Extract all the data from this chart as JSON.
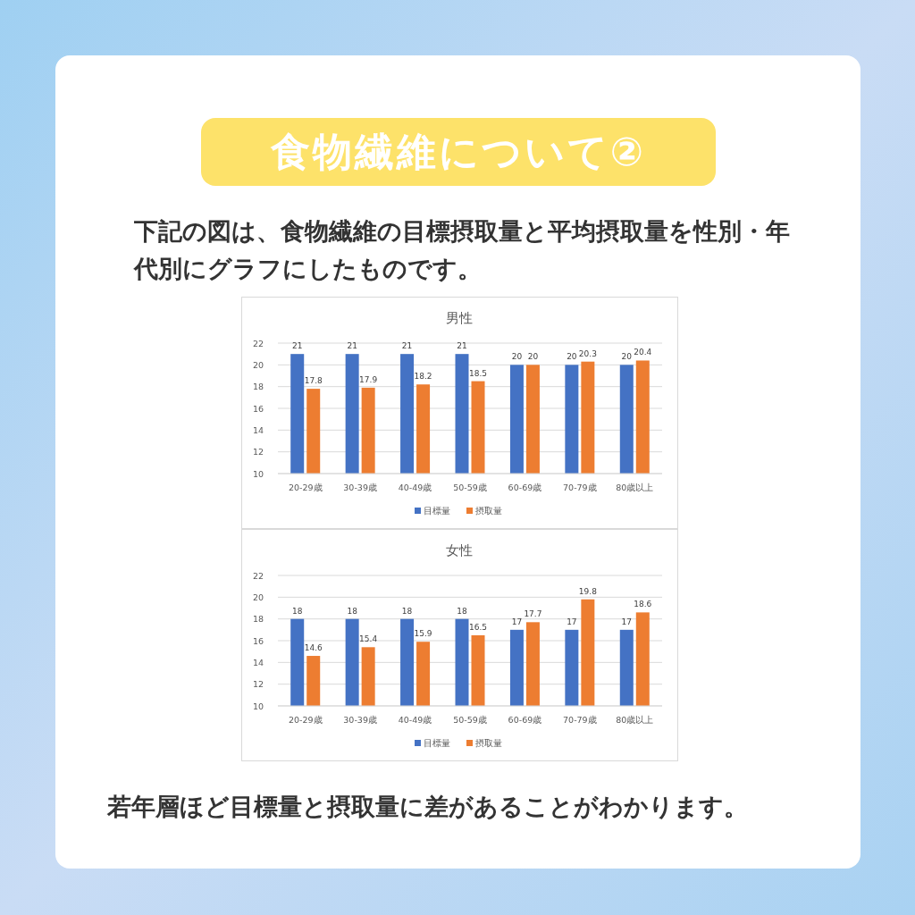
{
  "chart_data": [
    {
      "type": "bar",
      "title": "男性",
      "categories": [
        "20-29歳",
        "30-39歳",
        "40-49歳",
        "50-59歳",
        "60-69歳",
        "70-79歳",
        "80歳以上"
      ],
      "series": [
        {
          "name": "目標量",
          "color": "#4472c4",
          "values": [
            21,
            21,
            21,
            21,
            20,
            20,
            20
          ]
        },
        {
          "name": "摂取量",
          "color": "#ed7d31",
          "values": [
            17.8,
            17.9,
            18.2,
            18.5,
            20,
            20.3,
            20.4
          ]
        }
      ],
      "ylim": [
        10,
        22
      ],
      "yticks": [
        10,
        12,
        14,
        16,
        18,
        20,
        22
      ],
      "grid": "y",
      "legend": "bottom",
      "data_labels": true,
      "annotations": [
        "食物繊維について②",
        "下記の図は、食物繊維の目標摂取量と平均摂取量を性別・年代別にグラフにしたものです。"
      ]
    },
    {
      "type": "bar",
      "title": "女性",
      "categories": [
        "20-29歳",
        "30-39歳",
        "40-49歳",
        "50-59歳",
        "60-69歳",
        "70-79歳",
        "80歳以上"
      ],
      "series": [
        {
          "name": "目標量",
          "color": "#4472c4",
          "values": [
            18,
            18,
            18,
            18,
            17,
            17,
            17
          ]
        },
        {
          "name": "摂取量",
          "color": "#ed7d31",
          "values": [
            14.6,
            15.4,
            15.9,
            16.5,
            17.7,
            19.8,
            18.6
          ]
        }
      ],
      "ylim": [
        10,
        22
      ],
      "yticks": [
        10,
        12,
        14,
        16,
        18,
        20,
        22
      ],
      "grid": "y",
      "legend": "bottom",
      "data_labels": true,
      "annotations": [
        "若年層ほど目標量と摂取量に差があることがわかります。"
      ]
    }
  ]
}
